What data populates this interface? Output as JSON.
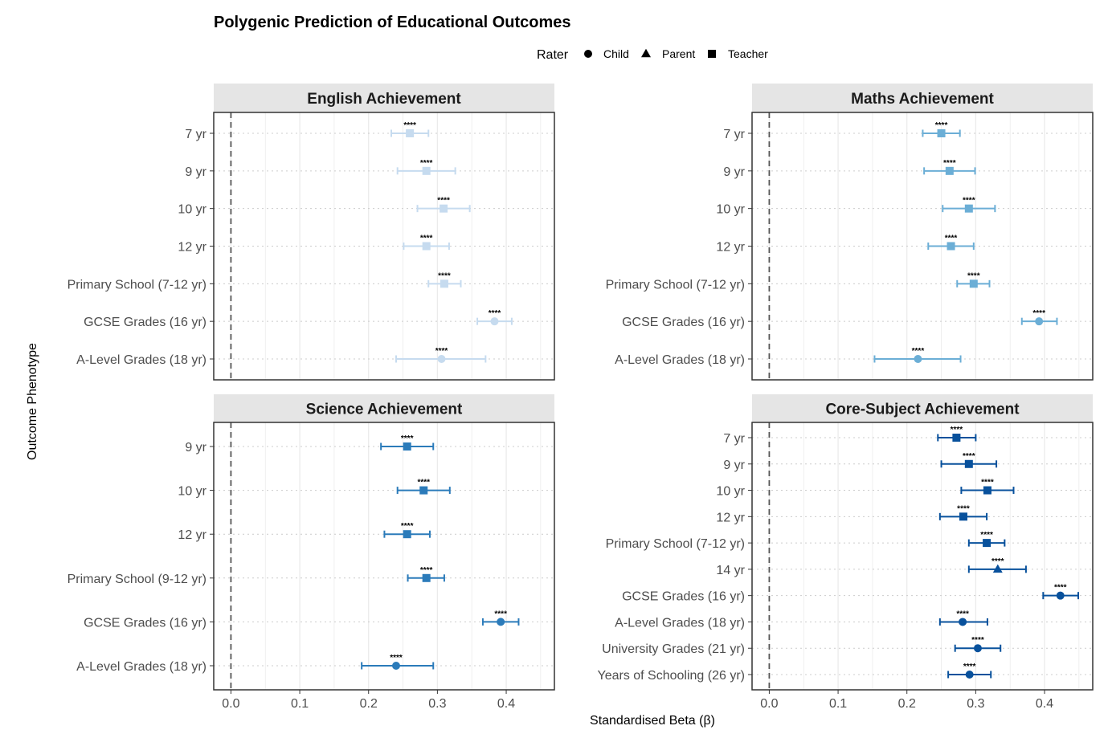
{
  "chart_data": {
    "type": "forest",
    "title": "Polygenic Prediction of Educational Outcomes",
    "xlabel": "Standardised Beta (β)",
    "ylabel": "Outcome Phenotype",
    "xlim": [
      -0.025,
      0.47
    ],
    "xticks": [
      "0.0",
      "0.1",
      "0.2",
      "0.3",
      "0.4"
    ],
    "reference_line": 0,
    "legend": {
      "title": "Rater",
      "position": "top",
      "entries": [
        {
          "label": "Child",
          "shape": "circle"
        },
        {
          "label": "Parent",
          "shape": "triangle"
        },
        {
          "label": "Teacher",
          "shape": "square"
        }
      ]
    },
    "panels": [
      {
        "title": "English Achievement",
        "color": "#c6dbef",
        "rows": [
          {
            "label": "7 yr",
            "estimate": 0.26,
            "lower": 0.233,
            "upper": 0.287,
            "rater": "Teacher",
            "sig": "****"
          },
          {
            "label": "9 yr",
            "estimate": 0.284,
            "lower": 0.242,
            "upper": 0.326,
            "rater": "Teacher",
            "sig": "****"
          },
          {
            "label": "10 yr",
            "estimate": 0.309,
            "lower": 0.271,
            "upper": 0.347,
            "rater": "Teacher",
            "sig": "****"
          },
          {
            "label": "12 yr",
            "estimate": 0.284,
            "lower": 0.251,
            "upper": 0.317,
            "rater": "Teacher",
            "sig": "****"
          },
          {
            "label": "Primary School (7-12 yr)",
            "estimate": 0.31,
            "lower": 0.287,
            "upper": 0.334,
            "rater": "Teacher",
            "sig": "****"
          },
          {
            "label": "GCSE Grades (16 yr)",
            "estimate": 0.383,
            "lower": 0.358,
            "upper": 0.408,
            "rater": "Child",
            "sig": "****"
          },
          {
            "label": "A-Level Grades (18 yr)",
            "estimate": 0.306,
            "lower": 0.24,
            "upper": 0.37,
            "rater": "Child",
            "sig": "****"
          }
        ]
      },
      {
        "title": "Maths Achievement",
        "color": "#6baed6",
        "rows": [
          {
            "label": "7 yr",
            "estimate": 0.25,
            "lower": 0.223,
            "upper": 0.277,
            "rater": "Teacher",
            "sig": "****"
          },
          {
            "label": "9 yr",
            "estimate": 0.262,
            "lower": 0.225,
            "upper": 0.299,
            "rater": "Teacher",
            "sig": "****"
          },
          {
            "label": "10 yr",
            "estimate": 0.29,
            "lower": 0.252,
            "upper": 0.328,
            "rater": "Teacher",
            "sig": "****"
          },
          {
            "label": "12 yr",
            "estimate": 0.264,
            "lower": 0.231,
            "upper": 0.297,
            "rater": "Teacher",
            "sig": "****"
          },
          {
            "label": "Primary School (7-12 yr)",
            "estimate": 0.297,
            "lower": 0.273,
            "upper": 0.32,
            "rater": "Teacher",
            "sig": "****"
          },
          {
            "label": "GCSE Grades (16 yr)",
            "estimate": 0.392,
            "lower": 0.367,
            "upper": 0.418,
            "rater": "Child",
            "sig": "****"
          },
          {
            "label": "A-Level Grades (18 yr)",
            "estimate": 0.216,
            "lower": 0.153,
            "upper": 0.278,
            "rater": "Child",
            "sig": "****"
          }
        ]
      },
      {
        "title": "Science Achievement",
        "color": "#2b7bba",
        "rows": [
          {
            "label": "9 yr",
            "estimate": 0.256,
            "lower": 0.218,
            "upper": 0.294,
            "rater": "Teacher",
            "sig": "****"
          },
          {
            "label": "10 yr",
            "estimate": 0.28,
            "lower": 0.242,
            "upper": 0.318,
            "rater": "Teacher",
            "sig": "****"
          },
          {
            "label": "12 yr",
            "estimate": 0.256,
            "lower": 0.223,
            "upper": 0.289,
            "rater": "Teacher",
            "sig": "****"
          },
          {
            "label": "Primary School (9-12 yr)",
            "estimate": 0.284,
            "lower": 0.257,
            "upper": 0.31,
            "rater": "Teacher",
            "sig": "****"
          },
          {
            "label": "GCSE Grades (16 yr)",
            "estimate": 0.392,
            "lower": 0.366,
            "upper": 0.418,
            "rater": "Child",
            "sig": "****"
          },
          {
            "label": "A-Level Grades (18 yr)",
            "estimate": 0.24,
            "lower": 0.19,
            "upper": 0.294,
            "rater": "Child",
            "sig": "****"
          }
        ]
      },
      {
        "title": "Core-Subject Achievement",
        "color": "#08519c",
        "rows": [
          {
            "label": "7 yr",
            "estimate": 0.272,
            "lower": 0.245,
            "upper": 0.3,
            "rater": "Teacher",
            "sig": "****"
          },
          {
            "label": "9 yr",
            "estimate": 0.29,
            "lower": 0.25,
            "upper": 0.33,
            "rater": "Teacher",
            "sig": "****"
          },
          {
            "label": "10 yr",
            "estimate": 0.317,
            "lower": 0.279,
            "upper": 0.355,
            "rater": "Teacher",
            "sig": "****"
          },
          {
            "label": "12 yr",
            "estimate": 0.282,
            "lower": 0.248,
            "upper": 0.316,
            "rater": "Teacher",
            "sig": "****"
          },
          {
            "label": "Primary School (7-12 yr)",
            "estimate": 0.316,
            "lower": 0.29,
            "upper": 0.342,
            "rater": "Teacher",
            "sig": "****"
          },
          {
            "label": "14 yr",
            "estimate": 0.332,
            "lower": 0.29,
            "upper": 0.373,
            "rater": "Parent",
            "sig": "****"
          },
          {
            "label": "GCSE Grades (16 yr)",
            "estimate": 0.423,
            "lower": 0.398,
            "upper": 0.449,
            "rater": "Child",
            "sig": "****"
          },
          {
            "label": "A-Level Grades (18 yr)",
            "estimate": 0.281,
            "lower": 0.248,
            "upper": 0.317,
            "rater": "Child",
            "sig": "****"
          },
          {
            "label": "University Grades (21 yr)",
            "estimate": 0.303,
            "lower": 0.27,
            "upper": 0.336,
            "rater": "Child",
            "sig": "****"
          },
          {
            "label": "Years of Schooling (26 yr)",
            "estimate": 0.291,
            "lower": 0.26,
            "upper": 0.322,
            "rater": "Child",
            "sig": "****"
          }
        ]
      }
    ]
  }
}
